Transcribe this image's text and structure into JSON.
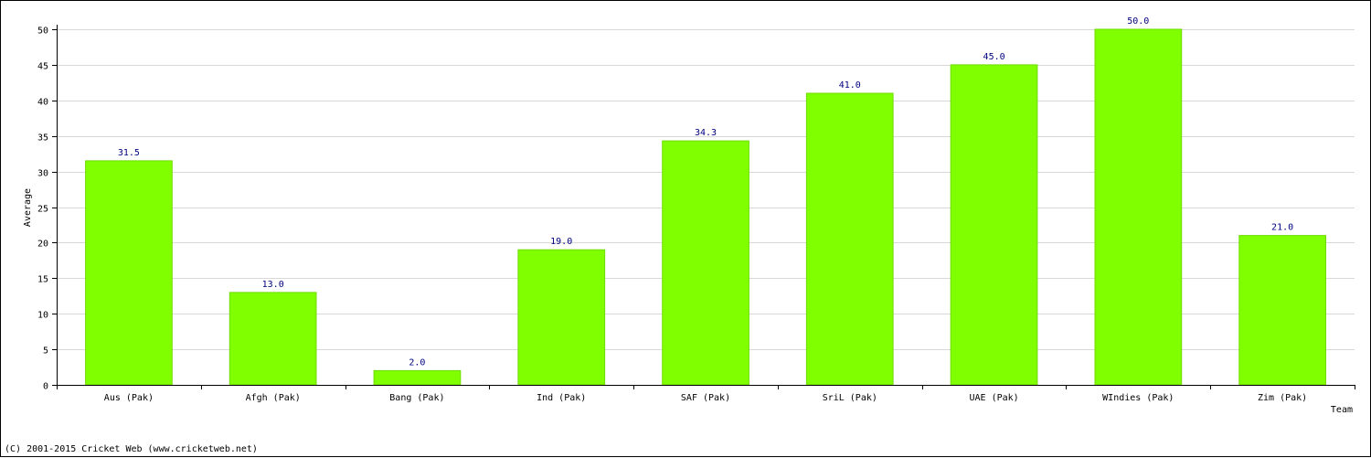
{
  "colors": {
    "bar": "#7fff00",
    "bar_edge": "#6fdc00",
    "value_label": "#000080",
    "grid": "#d8d8d8",
    "axis": "#000000"
  },
  "chart_data": {
    "type": "bar",
    "categories": [
      "Aus (Pak)",
      "Afgh (Pak)",
      "Bang (Pak)",
      "Ind (Pak)",
      "SAF (Pak)",
      "SriL (Pak)",
      "UAE (Pak)",
      "WIndies (Pak)",
      "Zim (Pak)"
    ],
    "values": [
      31.5,
      13.0,
      2.0,
      19.0,
      34.3,
      41.0,
      45.0,
      50.0,
      21.0
    ],
    "value_labels": [
      "31.5",
      "13.0",
      "2.0",
      "19.0",
      "34.3",
      "41.0",
      "45.0",
      "50.0",
      "21.0"
    ],
    "xlabel": "Team",
    "ylabel": "Average",
    "ylim": [
      0,
      50
    ],
    "yticks": [
      0,
      5,
      10,
      15,
      20,
      25,
      30,
      35,
      40,
      45,
      50
    ],
    "grid": true
  },
  "footer": {
    "copyright": "(C) 2001-2015 Cricket Web (www.cricketweb.net)"
  }
}
